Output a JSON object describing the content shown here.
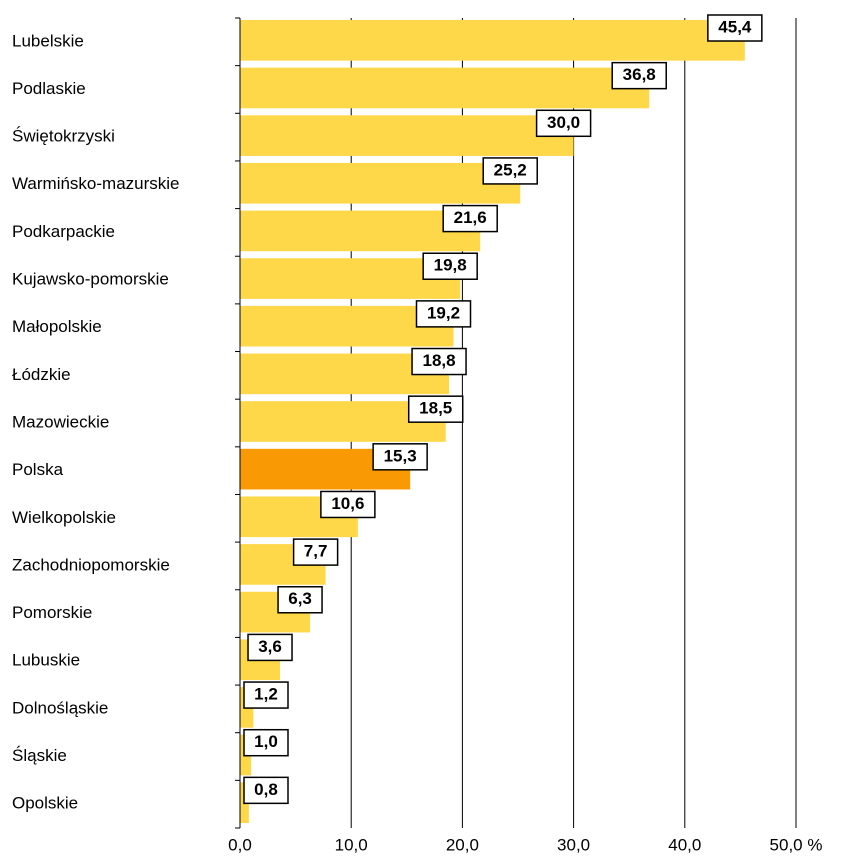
{
  "chart_data": {
    "type": "barh",
    "categories": [
      "Lubelskie",
      "Podlaskie",
      "Świętokrzyski",
      "Warmińsko-mazurskie",
      "Podkarpackie",
      "Kujawsko-pomorskie",
      "Małopolskie",
      "Łódzkie",
      "Mazowieckie",
      "Polska",
      "Wielkopolskie",
      "Zachodniopomorskie",
      "Pomorskie",
      "Lubuskie",
      "Dolnośląskie",
      "Śląskie",
      "Opolskie"
    ],
    "values": [
      45.4,
      36.8,
      30.0,
      25.2,
      21.6,
      19.8,
      19.2,
      18.8,
      18.5,
      15.3,
      10.6,
      7.7,
      6.3,
      3.6,
      1.2,
      1.0,
      0.8
    ],
    "value_labels": [
      "45,4",
      "36,8",
      "30,0",
      "25,2",
      "21,6",
      "19,8",
      "19,2",
      "18,8",
      "18,5",
      "15,3",
      "10,6",
      "7,7",
      "6,3",
      "3,6",
      "1,2",
      "1,0",
      "0,8"
    ],
    "colors": [
      "#ffd84a",
      "#ffd84a",
      "#ffd84a",
      "#ffd84a",
      "#ffd84a",
      "#ffd84a",
      "#ffd84a",
      "#ffd84a",
      "#ffd84a",
      "#f99a05",
      "#ffd84a",
      "#ffd84a",
      "#ffd84a",
      "#ffd84a",
      "#ffd84a",
      "#ffd84a",
      "#ffd84a"
    ],
    "xlim": [
      0,
      50
    ],
    "xticks": [
      {
        "value": 0,
        "label": "0,0"
      },
      {
        "value": 10,
        "label": "10,0"
      },
      {
        "value": 20,
        "label": "20,0"
      },
      {
        "value": 30,
        "label": "30,0"
      },
      {
        "value": 40,
        "label": "40,0"
      },
      {
        "value": 50,
        "label": "50,0 %"
      }
    ],
    "grid": true
  }
}
